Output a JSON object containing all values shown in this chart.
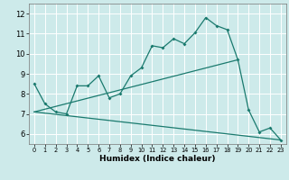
{
  "xlabel": "Humidex (Indice chaleur)",
  "xlim": [
    -0.5,
    23.5
  ],
  "ylim": [
    5.5,
    12.5
  ],
  "yticks": [
    6,
    7,
    8,
    9,
    10,
    11,
    12
  ],
  "xticks": [
    0,
    1,
    2,
    3,
    4,
    5,
    6,
    7,
    8,
    9,
    10,
    11,
    12,
    13,
    14,
    15,
    16,
    17,
    18,
    19,
    20,
    21,
    22,
    23
  ],
  "xtick_labels": [
    "0",
    "1",
    "2",
    "3",
    "4",
    "5",
    "6",
    "7",
    "8",
    "9",
    "10",
    "11",
    "12",
    "13",
    "14",
    "15",
    "16",
    "17",
    "18",
    "19",
    "20",
    "21",
    "22",
    "23"
  ],
  "bg_color": "#cdeaea",
  "grid_color": "#ffffff",
  "line_color": "#1a7a6e",
  "line1_x": [
    0,
    1,
    2,
    3,
    4,
    5,
    6,
    7,
    8,
    9,
    10,
    11,
    12,
    13,
    14,
    15,
    16,
    17,
    18,
    19,
    20,
    21,
    22,
    23
  ],
  "line1_y": [
    8.5,
    7.5,
    7.1,
    7.0,
    8.4,
    8.4,
    8.9,
    7.8,
    8.0,
    8.9,
    9.3,
    10.4,
    10.3,
    10.75,
    10.5,
    11.05,
    11.8,
    11.4,
    11.2,
    9.7,
    7.2,
    6.1,
    6.3,
    5.7
  ],
  "line2_x": [
    0,
    19
  ],
  "line2_y": [
    7.1,
    9.7
  ],
  "line3_x": [
    0,
    23
  ],
  "line3_y": [
    7.1,
    5.7
  ],
  "xlabel_fontsize": 6.5,
  "tick_fontsize_x": 4.8,
  "tick_fontsize_y": 6.0
}
